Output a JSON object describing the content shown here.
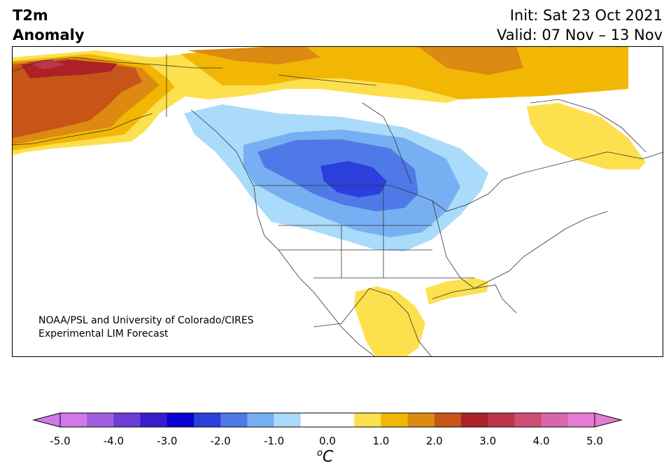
{
  "title": {
    "variable_line1": "T2m",
    "variable_line2": "Anomaly",
    "init": "Init: Sat 23 Oct 2021",
    "valid": "Valid: 07 Nov – 13 Nov"
  },
  "credit": {
    "line1": "NOAA/PSL and University of Colorado/CIRES",
    "line2": "Experimental LIM Forecast"
  },
  "colorbar": {
    "unit_symbol": "o",
    "unit_letter": "C",
    "ticks": [
      "-5.0",
      "-4.0",
      "-3.0",
      "-2.0",
      "-1.0",
      "0.0",
      "1.0",
      "2.0",
      "3.0",
      "4.0",
      "5.0"
    ],
    "colors": [
      "#d179e8",
      "#a05ee0",
      "#6c3ed8",
      "#3a1ccf",
      "#0a00d0",
      "#2a3fdb",
      "#4f79e6",
      "#77b0f2",
      "#abdbfb",
      "#ffffff",
      "#ffffff",
      "#fde04e",
      "#f2b705",
      "#dc8a12",
      "#c65517",
      "#ac2126",
      "#bc3549",
      "#cf4f74",
      "#d966a8",
      "#e67bd4"
    ],
    "under_color": "#d179e8",
    "over_color": "#e67bd4"
  },
  "map": {
    "region": "North America",
    "field_colors": {
      "warm_1": "#fde04e",
      "warm_2": "#f2b705",
      "warm_3": "#dc8a12",
      "warm_4": "#c65517",
      "warm_5": "#ac2126",
      "warm_6": "#bc3549",
      "cold_1": "#abdbfb",
      "cold_2": "#77b0f2",
      "cold_3": "#4f79e6",
      "cold_4": "#2a3fdb"
    }
  }
}
